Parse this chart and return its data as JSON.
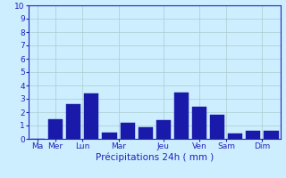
{
  "bars": [
    {
      "x": 1,
      "height": 0.0,
      "day": "Ma"
    },
    {
      "x": 2,
      "height": 1.5,
      "day": "Mer"
    },
    {
      "x": 3,
      "height": 2.6,
      "day": "Lun"
    },
    {
      "x": 4,
      "height": 3.4,
      "day": "Lun"
    },
    {
      "x": 5,
      "height": 0.5,
      "day": "Mar"
    },
    {
      "x": 6,
      "height": 1.2,
      "day": "Mar"
    },
    {
      "x": 7,
      "height": 0.9,
      "day": "Jeu"
    },
    {
      "x": 8,
      "height": 1.4,
      "day": "Jeu"
    },
    {
      "x": 9,
      "height": 3.5,
      "day": "Jeu"
    },
    {
      "x": 10,
      "height": 2.4,
      "day": "Ven"
    },
    {
      "x": 11,
      "height": 1.8,
      "day": "Sam"
    },
    {
      "x": 12,
      "height": 0.4,
      "day": "Sam"
    },
    {
      "x": 13,
      "height": 0.6,
      "day": "Dim"
    },
    {
      "x": 14,
      "height": 0.6,
      "day": "Dim"
    }
  ],
  "day_label_positions": [
    {
      "x": 1.0,
      "label": "Ma"
    },
    {
      "x": 2.0,
      "label": "Mer"
    },
    {
      "x": 3.5,
      "label": "Lun"
    },
    {
      "x": 5.5,
      "label": "Mar"
    },
    {
      "x": 8.0,
      "label": "Jeu"
    },
    {
      "x": 10.0,
      "label": "Ven"
    },
    {
      "x": 11.5,
      "label": "Sam"
    },
    {
      "x": 13.5,
      "label": "Dim"
    }
  ],
  "bar_color": "#1a1aaa",
  "bar_edge_color": "#1a1aaa",
  "background_color": "#cceeff",
  "grid_color": "#aacccc",
  "axis_color": "#2222bb",
  "text_color": "#2222bb",
  "xlabel": "Précipitations 24h ( mm )",
  "ylim": [
    0,
    10
  ],
  "yticks": [
    0,
    1,
    2,
    3,
    4,
    5,
    6,
    7,
    8,
    9,
    10
  ],
  "bar_width": 0.8,
  "xlabel_fontsize": 7.5,
  "tick_fontsize": 6.5,
  "xlim": [
    0.5,
    14.5
  ]
}
